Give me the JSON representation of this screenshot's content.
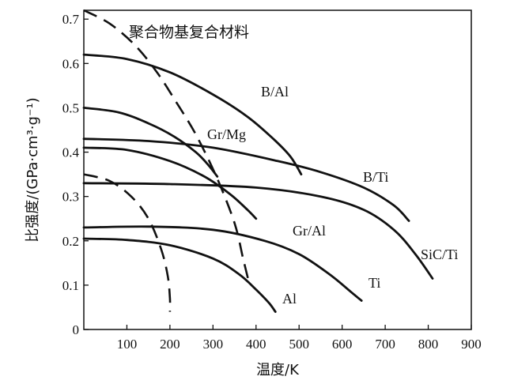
{
  "chart_data": {
    "type": "line",
    "title": "",
    "xlabel": "温度/K",
    "ylabel": "比强度/(GPa·cm³·g⁻¹)",
    "xlim": [
      0,
      900
    ],
    "ylim": [
      0,
      0.72
    ],
    "xticks": [
      100,
      200,
      300,
      400,
      500,
      600,
      700,
      800,
      900
    ],
    "yticks": [
      0,
      0.1,
      0.2,
      0.3,
      0.4,
      0.5,
      0.6,
      0.7
    ],
    "xtick_labels": [
      "100",
      "200",
      "300",
      "400",
      "500",
      "600",
      "700",
      "800",
      "900"
    ],
    "ytick_labels": [
      "0",
      "0.1",
      "0.2",
      "0.3",
      "0.4",
      "0.5",
      "0.6",
      "0.7"
    ],
    "grid": false,
    "legend": "none",
    "annotations": [
      {
        "text": "聚合物基复合材料"
      }
    ],
    "series": [
      {
        "name": "B/Al",
        "style": "solid",
        "x": [
          0,
          100,
          200,
          300,
          380,
          440,
          480,
          505
        ],
        "y": [
          0.62,
          0.61,
          0.58,
          0.53,
          0.48,
          0.43,
          0.39,
          0.35
        ]
      },
      {
        "name": "Gr/Mg",
        "style": "solid",
        "x": [
          0,
          80,
          150,
          210,
          260,
          290,
          310
        ],
        "y": [
          0.5,
          0.49,
          0.465,
          0.435,
          0.4,
          0.37,
          0.345
        ]
      },
      {
        "name": "B/Ti",
        "style": "solid",
        "x": [
          0,
          150,
          300,
          450,
          550,
          650,
          720,
          755
        ],
        "y": [
          0.43,
          0.425,
          0.41,
          0.38,
          0.355,
          0.32,
          0.28,
          0.245
        ]
      },
      {
        "name": "Gr/Al",
        "style": "solid",
        "x": [
          0,
          100,
          200,
          280,
          340,
          380,
          400
        ],
        "y": [
          0.41,
          0.405,
          0.38,
          0.345,
          0.305,
          0.27,
          0.25
        ]
      },
      {
        "name": "SiC/Ti",
        "style": "solid",
        "x": [
          0,
          200,
          400,
          550,
          650,
          720,
          770,
          810
        ],
        "y": [
          0.33,
          0.328,
          0.32,
          0.3,
          0.27,
          0.225,
          0.17,
          0.115
        ]
      },
      {
        "name": "Ti",
        "style": "solid",
        "x": [
          0,
          150,
          300,
          420,
          500,
          570,
          620,
          645
        ],
        "y": [
          0.23,
          0.232,
          0.225,
          0.2,
          0.17,
          0.125,
          0.085,
          0.065
        ]
      },
      {
        "name": "Al",
        "style": "solid",
        "x": [
          0,
          100,
          200,
          300,
          360,
          400,
          430,
          445
        ],
        "y": [
          0.205,
          0.202,
          0.19,
          0.16,
          0.125,
          0.09,
          0.06,
          0.04
        ]
      },
      {
        "name": "",
        "style": "dashed",
        "x": [
          0,
          60,
          120,
          170,
          210,
          260,
          310,
          350,
          370,
          385
        ],
        "y": [
          0.72,
          0.69,
          0.64,
          0.58,
          0.52,
          0.44,
          0.34,
          0.24,
          0.16,
          0.1
        ]
      },
      {
        "name": "",
        "style": "dashed",
        "x": [
          0,
          60,
          110,
          150,
          180,
          195,
          200,
          200
        ],
        "y": [
          0.35,
          0.335,
          0.3,
          0.25,
          0.18,
          0.12,
          0.07,
          0.04
        ]
      }
    ]
  }
}
